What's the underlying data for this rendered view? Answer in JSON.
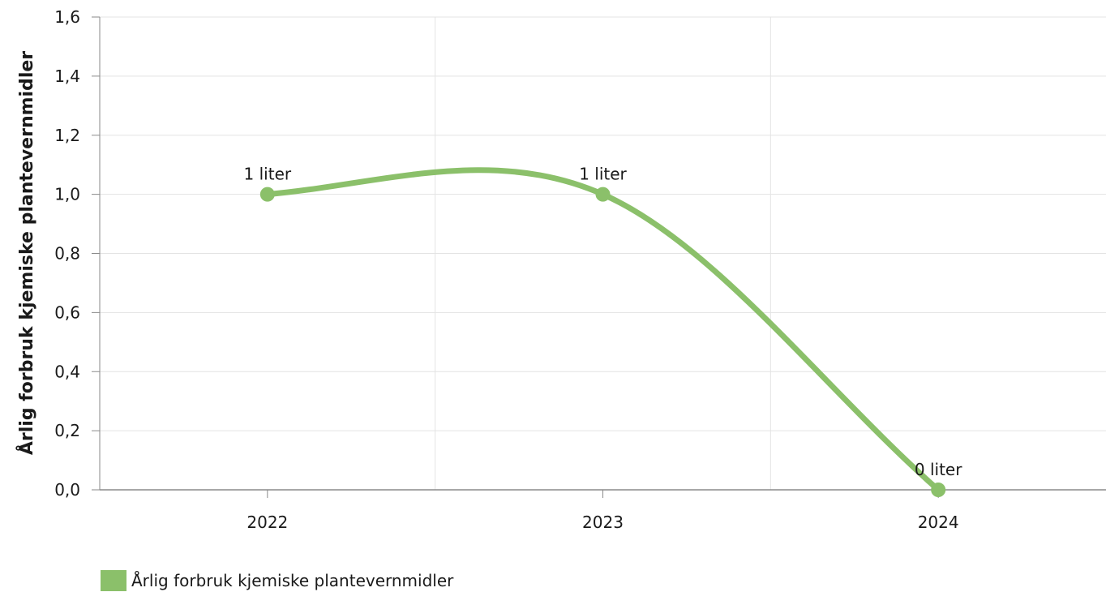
{
  "chart_data": {
    "type": "line",
    "categories": [
      "2022",
      "2023",
      "2024"
    ],
    "series": [
      {
        "name": "Årlig forbruk kjemiske plantevernmidler",
        "values": [
          1.0,
          1.0,
          0.0
        ],
        "data_labels": [
          "1 liter",
          "1 liter",
          "0 liter"
        ],
        "color": "#8bc06a"
      }
    ],
    "ylabel": "Årlig forbruk kjemiske plantevernmidler",
    "xlabel": "",
    "ylim": [
      0,
      1.6
    ],
    "yticks": [
      "0,0",
      "0,2",
      "0,4",
      "0,6",
      "0,8",
      "1,0",
      "1,2",
      "1,4",
      "1,6"
    ],
    "yticks_values": [
      0,
      0.2,
      0.4,
      0.6,
      0.8,
      1.0,
      1.2,
      1.4,
      1.6
    ],
    "grid": true,
    "smooth": true,
    "legend_position": "bottom-left"
  }
}
